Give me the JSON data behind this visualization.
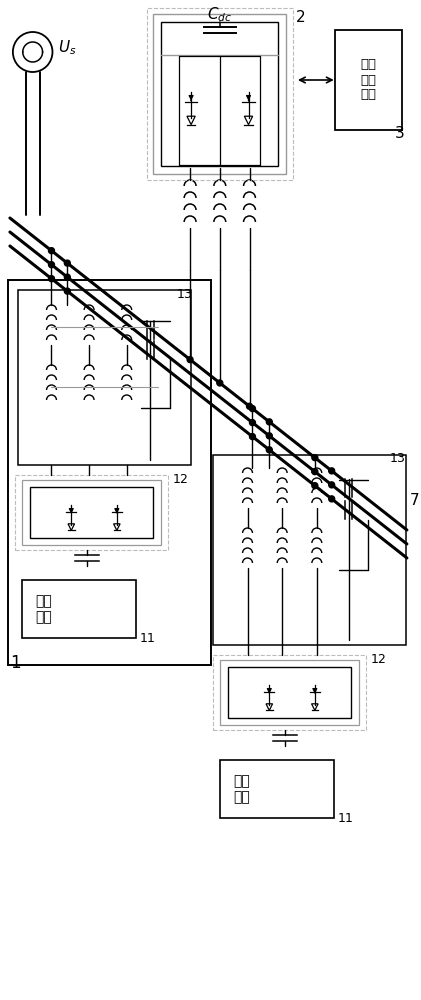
{
  "bg_color": "#ffffff",
  "lc": "#000000",
  "gc": "#999999",
  "lgc": "#bbbbbb",
  "fig_width": 4.21,
  "fig_height": 10.0,
  "labels": {
    "Us": "$U_s$",
    "Cdc": "$C_{dc}$",
    "central": "中央\n控制\n单元",
    "pv": "光伏\n电池"
  }
}
